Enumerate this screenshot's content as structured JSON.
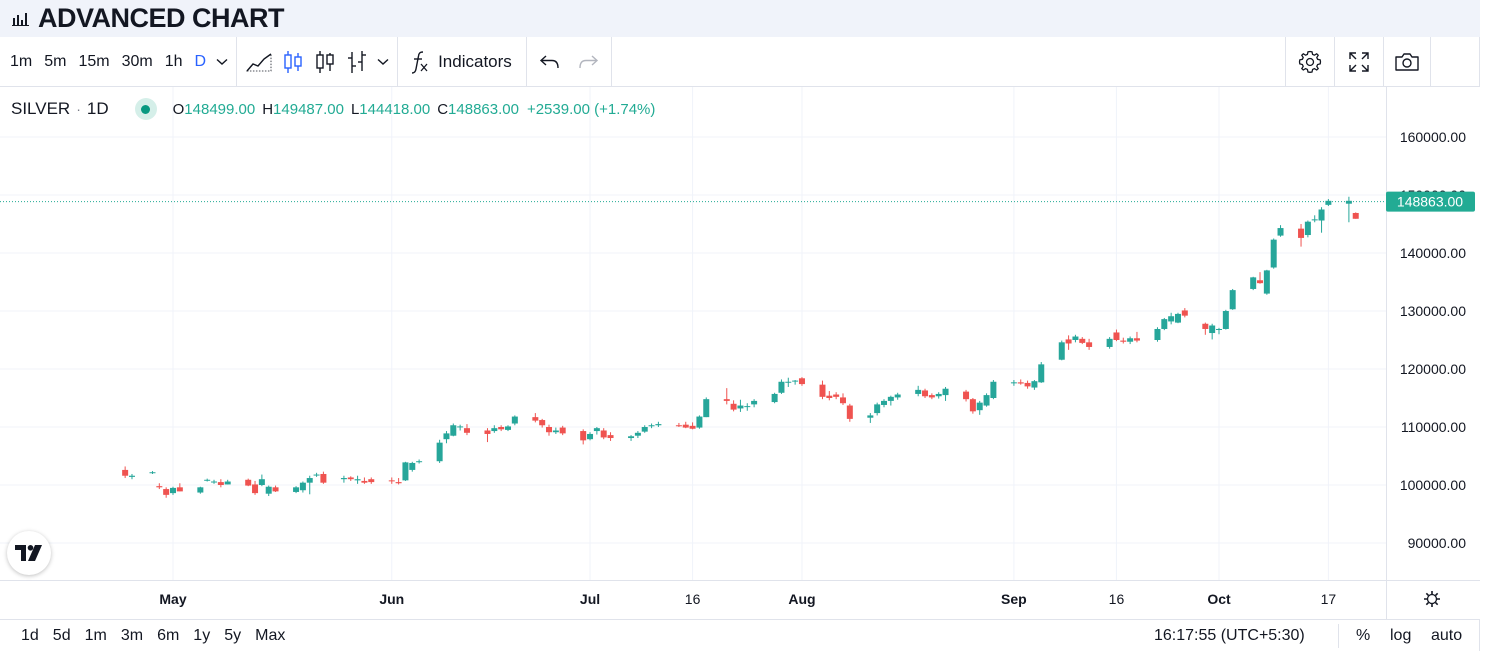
{
  "page": {
    "title": "ADVANCED CHART"
  },
  "toolbar": {
    "intervals": [
      "1m",
      "5m",
      "15m",
      "30m",
      "1h",
      "D"
    ],
    "active_interval": "D",
    "indicators_label": "Indicators"
  },
  "legend": {
    "symbol": "SILVER",
    "separator": "·",
    "interval": "1D",
    "o_label": "O",
    "o_value": "148499.00",
    "h_label": "H",
    "h_value": "149487.00",
    "l_label": "L",
    "l_value": "144418.00",
    "c_label": "C",
    "c_value": "148863.00",
    "change": "+2539.00 (+1.74%)"
  },
  "bottom_bar": {
    "ranges": [
      "1d",
      "5d",
      "1m",
      "3m",
      "6m",
      "1y",
      "5y",
      "Max"
    ],
    "clock": "16:17:55 (UTC+5:30)",
    "percent": "%",
    "log": "log",
    "auto": "auto"
  },
  "colors": {
    "up": "#26a69a",
    "down": "#ef5350",
    "last_price": "#22ab94",
    "active": "#2962ff"
  },
  "chart_data": {
    "type": "candlestick",
    "symbol": "SILVER",
    "interval": "1D",
    "y_ticks": [
      "160000.00",
      "150000.00",
      "140000.00",
      "130000.00",
      "120000.00",
      "110000.00",
      "100000.00",
      "90000.00"
    ],
    "ylim": [
      86000,
      168000
    ],
    "x_ticks": [
      {
        "label": "May",
        "date": "2025-05-01"
      },
      {
        "label": "Jun",
        "date": "2025-06-02"
      },
      {
        "label": "Jul",
        "date": "2025-07-01"
      },
      {
        "label": "16",
        "date": "2025-07-16"
      },
      {
        "label": "Aug",
        "date": "2025-08-01"
      },
      {
        "label": "Sep",
        "date": "2025-09-01"
      },
      {
        "label": "16",
        "date": "2025-09-16"
      },
      {
        "label": "Oct",
        "date": "2025-10-01"
      },
      {
        "label": "17",
        "date": "2025-10-17"
      }
    ],
    "last_price": "148863.00",
    "grid": true,
    "candles": [
      {
        "date": "2025-04-24",
        "o": 102600,
        "h": 103200,
        "l": 101200,
        "c": 101600
      },
      {
        "date": "2025-04-25",
        "o": 101400,
        "h": 101900,
        "l": 101000,
        "c": 101600
      },
      {
        "date": "2025-04-28",
        "o": 102200,
        "h": 102400,
        "l": 101900,
        "c": 102200
      },
      {
        "date": "2025-04-29",
        "o": 99800,
        "h": 100300,
        "l": 99300,
        "c": 99600
      },
      {
        "date": "2025-04-30",
        "o": 99300,
        "h": 99600,
        "l": 97800,
        "c": 98300
      },
      {
        "date": "2025-05-01",
        "o": 98600,
        "h": 99700,
        "l": 98300,
        "c": 99500
      },
      {
        "date": "2025-05-02",
        "o": 99600,
        "h": 100300,
        "l": 98900,
        "c": 98900
      },
      {
        "date": "2025-05-05",
        "o": 98700,
        "h": 99700,
        "l": 98500,
        "c": 99600
      },
      {
        "date": "2025-05-06",
        "o": 100900,
        "h": 101100,
        "l": 100600,
        "c": 100900
      },
      {
        "date": "2025-05-07",
        "o": 100600,
        "h": 100900,
        "l": 100200,
        "c": 100600
      },
      {
        "date": "2025-05-08",
        "o": 100500,
        "h": 101000,
        "l": 99600,
        "c": 100000
      },
      {
        "date": "2025-05-09",
        "o": 100100,
        "h": 100900,
        "l": 100100,
        "c": 100600
      },
      {
        "date": "2025-05-12",
        "o": 100900,
        "h": 101100,
        "l": 99800,
        "c": 99900
      },
      {
        "date": "2025-05-13",
        "o": 100100,
        "h": 100700,
        "l": 98300,
        "c": 98600
      },
      {
        "date": "2025-05-14",
        "o": 100000,
        "h": 101800,
        "l": 99800,
        "c": 101000
      },
      {
        "date": "2025-05-15",
        "o": 98500,
        "h": 99900,
        "l": 98100,
        "c": 99700
      },
      {
        "date": "2025-05-16",
        "o": 99600,
        "h": 99900,
        "l": 98800,
        "c": 98900
      },
      {
        "date": "2025-05-19",
        "o": 98800,
        "h": 99800,
        "l": 98600,
        "c": 99600
      },
      {
        "date": "2025-05-20",
        "o": 99100,
        "h": 100600,
        "l": 98700,
        "c": 100400
      },
      {
        "date": "2025-05-21",
        "o": 100400,
        "h": 101600,
        "l": 98400,
        "c": 101200
      },
      {
        "date": "2025-05-22",
        "o": 101800,
        "h": 102100,
        "l": 101400,
        "c": 101800
      },
      {
        "date": "2025-05-23",
        "o": 101900,
        "h": 102300,
        "l": 100200,
        "c": 100400
      },
      {
        "date": "2025-05-26",
        "o": 101000,
        "h": 101600,
        "l": 100400,
        "c": 101200
      },
      {
        "date": "2025-05-27",
        "o": 101300,
        "h": 101500,
        "l": 100700,
        "c": 101000
      },
      {
        "date": "2025-05-28",
        "o": 100800,
        "h": 101600,
        "l": 100200,
        "c": 101000
      },
      {
        "date": "2025-05-29",
        "o": 100700,
        "h": 101300,
        "l": 100200,
        "c": 100400
      },
      {
        "date": "2025-05-30",
        "o": 101000,
        "h": 101300,
        "l": 100200,
        "c": 100500
      },
      {
        "date": "2025-06-02",
        "o": 100800,
        "h": 101300,
        "l": 100200,
        "c": 100700
      },
      {
        "date": "2025-06-03",
        "o": 100500,
        "h": 101200,
        "l": 100100,
        "c": 100300
      },
      {
        "date": "2025-06-04",
        "o": 100800,
        "h": 104000,
        "l": 100700,
        "c": 103900
      },
      {
        "date": "2025-06-05",
        "o": 102600,
        "h": 104000,
        "l": 102300,
        "c": 103800
      },
      {
        "date": "2025-06-06",
        "o": 104000,
        "h": 104400,
        "l": 103700,
        "c": 104100
      },
      {
        "date": "2025-06-09",
        "o": 104100,
        "h": 107800,
        "l": 103800,
        "c": 107300
      },
      {
        "date": "2025-06-10",
        "o": 107900,
        "h": 109300,
        "l": 107200,
        "c": 108900
      },
      {
        "date": "2025-06-11",
        "o": 108500,
        "h": 110600,
        "l": 108400,
        "c": 110300
      },
      {
        "date": "2025-06-12",
        "o": 110100,
        "h": 110400,
        "l": 109400,
        "c": 110100
      },
      {
        "date": "2025-06-13",
        "o": 109800,
        "h": 110500,
        "l": 108600,
        "c": 109000
      },
      {
        "date": "2025-06-16",
        "o": 109400,
        "h": 109800,
        "l": 107400,
        "c": 108800
      },
      {
        "date": "2025-06-17",
        "o": 109300,
        "h": 110300,
        "l": 109000,
        "c": 109800
      },
      {
        "date": "2025-06-18",
        "o": 110000,
        "h": 110300,
        "l": 109300,
        "c": 109600
      },
      {
        "date": "2025-06-19",
        "o": 109500,
        "h": 110300,
        "l": 109300,
        "c": 110100
      },
      {
        "date": "2025-06-20",
        "o": 110600,
        "h": 112000,
        "l": 110300,
        "c": 111800
      },
      {
        "date": "2025-06-23",
        "o": 111700,
        "h": 112400,
        "l": 110800,
        "c": 111100
      },
      {
        "date": "2025-06-24",
        "o": 111200,
        "h": 111400,
        "l": 109900,
        "c": 110300
      },
      {
        "date": "2025-06-25",
        "o": 110000,
        "h": 110400,
        "l": 108500,
        "c": 109100
      },
      {
        "date": "2025-06-26",
        "o": 109100,
        "h": 109900,
        "l": 108800,
        "c": 109400
      },
      {
        "date": "2025-06-27",
        "o": 109900,
        "h": 110200,
        "l": 108600,
        "c": 108900
      },
      {
        "date": "2025-06-30",
        "o": 109300,
        "h": 109600,
        "l": 107000,
        "c": 107700
      },
      {
        "date": "2025-07-01",
        "o": 107900,
        "h": 109100,
        "l": 107700,
        "c": 108800
      },
      {
        "date": "2025-07-02",
        "o": 109300,
        "h": 110000,
        "l": 108700,
        "c": 109800
      },
      {
        "date": "2025-07-03",
        "o": 109400,
        "h": 109800,
        "l": 107900,
        "c": 108200
      },
      {
        "date": "2025-07-04",
        "o": 108600,
        "h": 109100,
        "l": 107600,
        "c": 108100
      },
      {
        "date": "2025-07-07",
        "o": 108100,
        "h": 108600,
        "l": 107600,
        "c": 108400
      },
      {
        "date": "2025-07-08",
        "o": 108500,
        "h": 109300,
        "l": 108100,
        "c": 109000
      },
      {
        "date": "2025-07-09",
        "o": 109200,
        "h": 110300,
        "l": 109000,
        "c": 110000
      },
      {
        "date": "2025-07-10",
        "o": 110200,
        "h": 110600,
        "l": 109800,
        "c": 110300
      },
      {
        "date": "2025-07-11",
        "o": 110300,
        "h": 110900,
        "l": 110000,
        "c": 110500
      },
      {
        "date": "2025-07-14",
        "o": 110300,
        "h": 110700,
        "l": 110000,
        "c": 110200
      },
      {
        "date": "2025-07-15",
        "o": 110400,
        "h": 110900,
        "l": 109800,
        "c": 109900
      },
      {
        "date": "2025-07-16",
        "o": 110200,
        "h": 110800,
        "l": 109600,
        "c": 109700
      },
      {
        "date": "2025-07-17",
        "o": 109900,
        "h": 112000,
        "l": 109700,
        "c": 111800
      },
      {
        "date": "2025-07-18",
        "o": 111700,
        "h": 115100,
        "l": 111700,
        "c": 114800
      },
      {
        "date": "2025-07-21",
        "o": 114800,
        "h": 116700,
        "l": 113900,
        "c": 114500
      },
      {
        "date": "2025-07-22",
        "o": 114000,
        "h": 114600,
        "l": 112700,
        "c": 113000
      },
      {
        "date": "2025-07-23",
        "o": 113200,
        "h": 114700,
        "l": 112600,
        "c": 113700
      },
      {
        "date": "2025-07-24",
        "o": 113500,
        "h": 114100,
        "l": 112800,
        "c": 113600
      },
      {
        "date": "2025-07-25",
        "o": 113900,
        "h": 114800,
        "l": 113400,
        "c": 114500
      },
      {
        "date": "2025-07-28",
        "o": 114300,
        "h": 115900,
        "l": 114100,
        "c": 115700
      },
      {
        "date": "2025-07-29",
        "o": 115900,
        "h": 118200,
        "l": 115700,
        "c": 117800
      },
      {
        "date": "2025-07-30",
        "o": 117700,
        "h": 118500,
        "l": 116900,
        "c": 117800
      },
      {
        "date": "2025-07-31",
        "o": 117900,
        "h": 118100,
        "l": 117300,
        "c": 118000
      },
      {
        "date": "2025-08-01",
        "o": 118400,
        "h": 118600,
        "l": 117100,
        "c": 117400
      },
      {
        "date": "2025-08-04",
        "o": 117300,
        "h": 118000,
        "l": 114800,
        "c": 115200
      },
      {
        "date": "2025-08-05",
        "o": 115400,
        "h": 116200,
        "l": 114600,
        "c": 115000
      },
      {
        "date": "2025-08-06",
        "o": 115600,
        "h": 116000,
        "l": 114800,
        "c": 115200
      },
      {
        "date": "2025-08-07",
        "o": 115100,
        "h": 115800,
        "l": 113800,
        "c": 114100
      },
      {
        "date": "2025-08-08",
        "o": 113700,
        "h": 114000,
        "l": 110900,
        "c": 111400
      },
      {
        "date": "2025-08-11",
        "o": 111600,
        "h": 112400,
        "l": 110700,
        "c": 112000
      },
      {
        "date": "2025-08-12",
        "o": 112400,
        "h": 114200,
        "l": 112000,
        "c": 113900
      },
      {
        "date": "2025-08-13",
        "o": 113800,
        "h": 114800,
        "l": 113400,
        "c": 114500
      },
      {
        "date": "2025-08-14",
        "o": 114500,
        "h": 115400,
        "l": 113700,
        "c": 115200
      },
      {
        "date": "2025-08-15",
        "o": 115100,
        "h": 115900,
        "l": 114700,
        "c": 115600
      },
      {
        "date": "2025-08-18",
        "o": 115700,
        "h": 117100,
        "l": 115300,
        "c": 116400
      },
      {
        "date": "2025-08-19",
        "o": 116300,
        "h": 116600,
        "l": 115000,
        "c": 115300
      },
      {
        "date": "2025-08-20",
        "o": 115500,
        "h": 115800,
        "l": 114800,
        "c": 115100
      },
      {
        "date": "2025-08-21",
        "o": 115300,
        "h": 116000,
        "l": 114900,
        "c": 115700
      },
      {
        "date": "2025-08-22",
        "o": 115500,
        "h": 116900,
        "l": 114500,
        "c": 116600
      },
      {
        "date": "2025-08-25",
        "o": 116100,
        "h": 116400,
        "l": 114400,
        "c": 114800
      },
      {
        "date": "2025-08-26",
        "o": 114800,
        "h": 115000,
        "l": 112300,
        "c": 112700
      },
      {
        "date": "2025-08-27",
        "o": 112900,
        "h": 114500,
        "l": 112100,
        "c": 114200
      },
      {
        "date": "2025-08-28",
        "o": 113700,
        "h": 115800,
        "l": 113500,
        "c": 115500
      },
      {
        "date": "2025-08-29",
        "o": 115000,
        "h": 118100,
        "l": 114800,
        "c": 117800
      },
      {
        "date": "2025-09-01",
        "o": 117600,
        "h": 118100,
        "l": 117100,
        "c": 117700
      },
      {
        "date": "2025-09-02",
        "o": 117700,
        "h": 118200,
        "l": 117300,
        "c": 117500
      },
      {
        "date": "2025-09-03",
        "o": 117600,
        "h": 118000,
        "l": 116600,
        "c": 117000
      },
      {
        "date": "2025-09-04",
        "o": 116800,
        "h": 118100,
        "l": 116400,
        "c": 117900
      },
      {
        "date": "2025-09-05",
        "o": 117700,
        "h": 121200,
        "l": 117600,
        "c": 120800
      },
      {
        "date": "2025-09-08",
        "o": 121600,
        "h": 124900,
        "l": 121500,
        "c": 124600
      },
      {
        "date": "2025-09-09",
        "o": 125100,
        "h": 125800,
        "l": 123300,
        "c": 124400
      },
      {
        "date": "2025-09-10",
        "o": 125000,
        "h": 125900,
        "l": 124600,
        "c": 125600
      },
      {
        "date": "2025-09-11",
        "o": 125200,
        "h": 125500,
        "l": 124300,
        "c": 124500
      },
      {
        "date": "2025-09-12",
        "o": 124600,
        "h": 125200,
        "l": 123300,
        "c": 123800
      },
      {
        "date": "2025-09-15",
        "o": 123800,
        "h": 125500,
        "l": 123500,
        "c": 125200
      },
      {
        "date": "2025-09-16",
        "o": 126300,
        "h": 126800,
        "l": 124800,
        "c": 125000
      },
      {
        "date": "2025-09-17",
        "o": 124900,
        "h": 125400,
        "l": 124400,
        "c": 124700
      },
      {
        "date": "2025-09-18",
        "o": 124700,
        "h": 125600,
        "l": 124300,
        "c": 125300
      },
      {
        "date": "2025-09-19",
        "o": 125300,
        "h": 126400,
        "l": 124600,
        "c": 124900
      },
      {
        "date": "2025-09-22",
        "o": 125000,
        "h": 127200,
        "l": 124700,
        "c": 126900
      },
      {
        "date": "2025-09-23",
        "o": 126900,
        "h": 128800,
        "l": 126700,
        "c": 128600
      },
      {
        "date": "2025-09-24",
        "o": 128200,
        "h": 129700,
        "l": 127700,
        "c": 129100
      },
      {
        "date": "2025-09-25",
        "o": 128000,
        "h": 129700,
        "l": 127900,
        "c": 129500
      },
      {
        "date": "2025-09-26",
        "o": 130100,
        "h": 130500,
        "l": 128900,
        "c": 129200
      },
      {
        "date": "2025-09-29",
        "o": 127800,
        "h": 128000,
        "l": 125900,
        "c": 126900
      },
      {
        "date": "2025-09-30",
        "o": 126200,
        "h": 127800,
        "l": 125100,
        "c": 127500
      },
      {
        "date": "2025-10-01",
        "o": 126900,
        "h": 127100,
        "l": 126000,
        "c": 126900
      },
      {
        "date": "2025-10-02",
        "o": 126900,
        "h": 130200,
        "l": 126800,
        "c": 130000
      },
      {
        "date": "2025-10-03",
        "o": 130300,
        "h": 133800,
        "l": 130200,
        "c": 133600
      },
      {
        "date": "2025-10-06",
        "o": 133800,
        "h": 135900,
        "l": 133600,
        "c": 135800
      },
      {
        "date": "2025-10-07",
        "o": 135300,
        "h": 136700,
        "l": 134700,
        "c": 134800
      },
      {
        "date": "2025-10-08",
        "o": 133000,
        "h": 137100,
        "l": 132800,
        "c": 137000
      },
      {
        "date": "2025-10-09",
        "o": 137500,
        "h": 142500,
        "l": 137300,
        "c": 142300
      },
      {
        "date": "2025-10-10",
        "o": 143000,
        "h": 144800,
        "l": 142800,
        "c": 144300
      },
      {
        "date": "2025-10-13",
        "o": 144200,
        "h": 145000,
        "l": 141100,
        "c": 142600
      },
      {
        "date": "2025-10-14",
        "o": 143100,
        "h": 145600,
        "l": 142700,
        "c": 145400
      },
      {
        "date": "2025-10-15",
        "o": 145700,
        "h": 146500,
        "l": 145300,
        "c": 145800
      },
      {
        "date": "2025-10-16",
        "o": 145600,
        "h": 147900,
        "l": 143500,
        "c": 147500
      },
      {
        "date": "2025-10-17",
        "o": 148300,
        "h": 149300,
        "l": 148100,
        "c": 149000
      },
      {
        "date": "2025-10-20",
        "o": 148500,
        "h": 149700,
        "l": 145300,
        "c": 149000
      },
      {
        "date": "2025-10-21",
        "o": 146900,
        "h": 147000,
        "l": 145900,
        "c": 145900
      }
    ]
  }
}
